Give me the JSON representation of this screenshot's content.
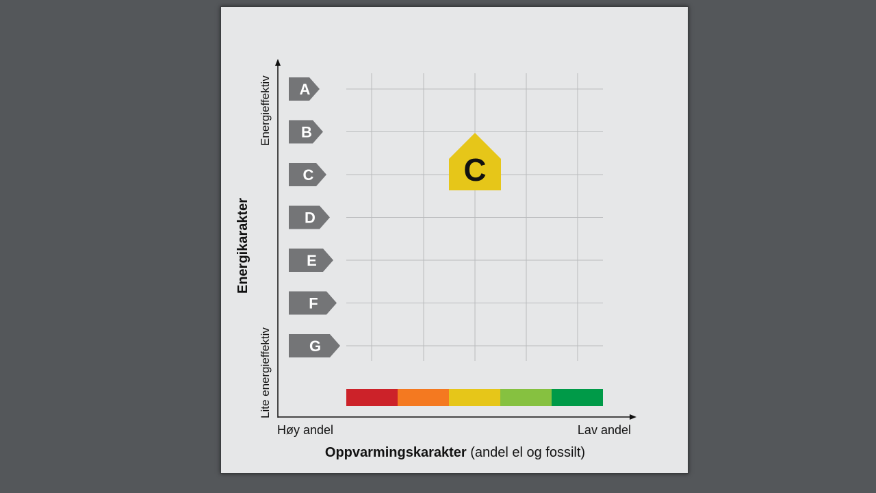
{
  "ratings": [
    {
      "letter": "A"
    },
    {
      "letter": "B"
    },
    {
      "letter": "C"
    },
    {
      "letter": "D"
    },
    {
      "letter": "E"
    },
    {
      "letter": "F"
    },
    {
      "letter": "G"
    }
  ],
  "y_axis": {
    "title": "Energikarakter",
    "top_label": "Energieffektiv",
    "bottom_label": "Lite energieffektiv"
  },
  "x_axis": {
    "title_bold": "Oppvarmingskarakter",
    "title_rest": " (andel el og fossilt)",
    "left_label": "Høy andel",
    "right_label": "Lav andel"
  },
  "heating_scale": {
    "colors": [
      "#cc2229",
      "#f47920",
      "#e6c619",
      "#86c140",
      "#009a48"
    ]
  },
  "highlight": {
    "letter": "C",
    "energy_rating": "C",
    "heating_level": 3,
    "color": "#e6c619"
  }
}
